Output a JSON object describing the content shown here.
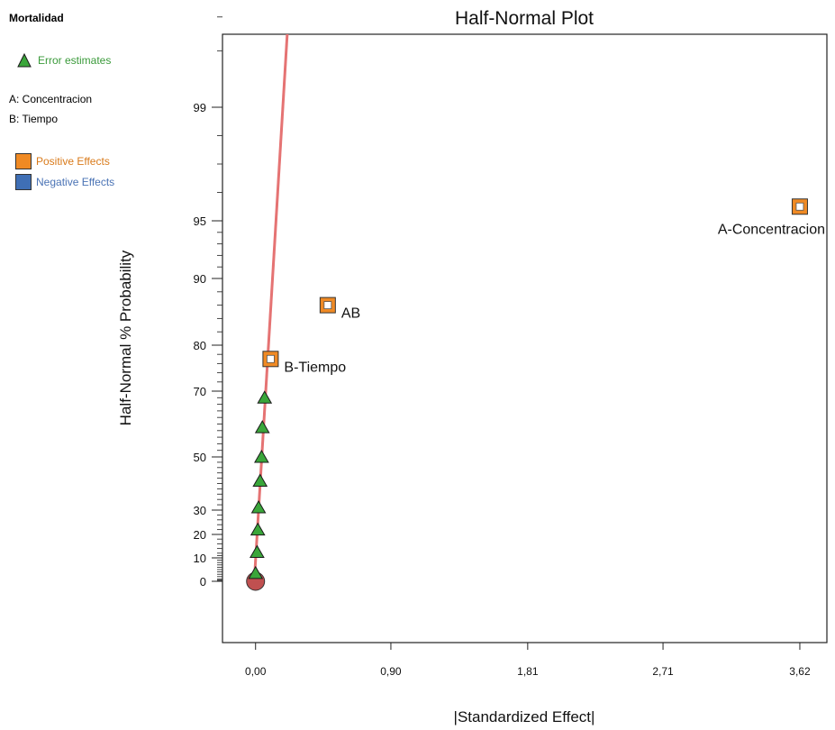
{
  "legend": {
    "title": "Mortalidad",
    "error_label": "Error estimates",
    "factor_a": "A: Concentracion",
    "factor_b": "B: Tiempo",
    "positive_label": "Positive Effects",
    "negative_label": "Negative Effects"
  },
  "colors": {
    "positive": "#f08a24",
    "negative": "#3f6fb5",
    "error": "#3aa63a",
    "line": "#e57373",
    "origin": "#c05050"
  },
  "chart_data": {
    "type": "scatter",
    "title": "Half-Normal Plot",
    "xlabel": "|Standardized Effect|",
    "ylabel": "Half-Normal % Probability",
    "xlim": [
      -0.22,
      3.8
    ],
    "x_ticks": [
      0.0,
      0.9,
      1.81,
      2.71,
      3.62
    ],
    "x_tick_labels": [
      "0,00",
      "0,90",
      "1,81",
      "2,71",
      "3,62"
    ],
    "y_ticks": [
      0,
      10,
      20,
      30,
      50,
      70,
      80,
      90,
      95,
      99
    ],
    "y_tick_labels": [
      "0",
      "10",
      "20",
      "30",
      "50",
      "70",
      "80",
      "90",
      "95",
      "99"
    ],
    "y_scale": "half-normal probability",
    "grid": false,
    "error_estimates": [
      {
        "x": 0.0,
        "y": 3.5
      },
      {
        "x": 0.01,
        "y": 12.5
      },
      {
        "x": 0.015,
        "y": 22
      },
      {
        "x": 0.02,
        "y": 31
      },
      {
        "x": 0.03,
        "y": 41
      },
      {
        "x": 0.04,
        "y": 50
      },
      {
        "x": 0.045,
        "y": 59
      },
      {
        "x": 0.06,
        "y": 68
      }
    ],
    "effects": [
      {
        "label": "A-Concentracion",
        "x": 3.62,
        "y": 95.5,
        "sign": "positive"
      },
      {
        "label": "AB",
        "x": 0.48,
        "y": 86,
        "sign": "positive"
      },
      {
        "label": "B-Tiempo",
        "x": 0.1,
        "y": 77,
        "sign": "positive"
      }
    ],
    "origin_point": {
      "x": 0.0,
      "y": 0
    },
    "fit_line": {
      "x_start": 0.0,
      "x_end": 0.2
    }
  }
}
